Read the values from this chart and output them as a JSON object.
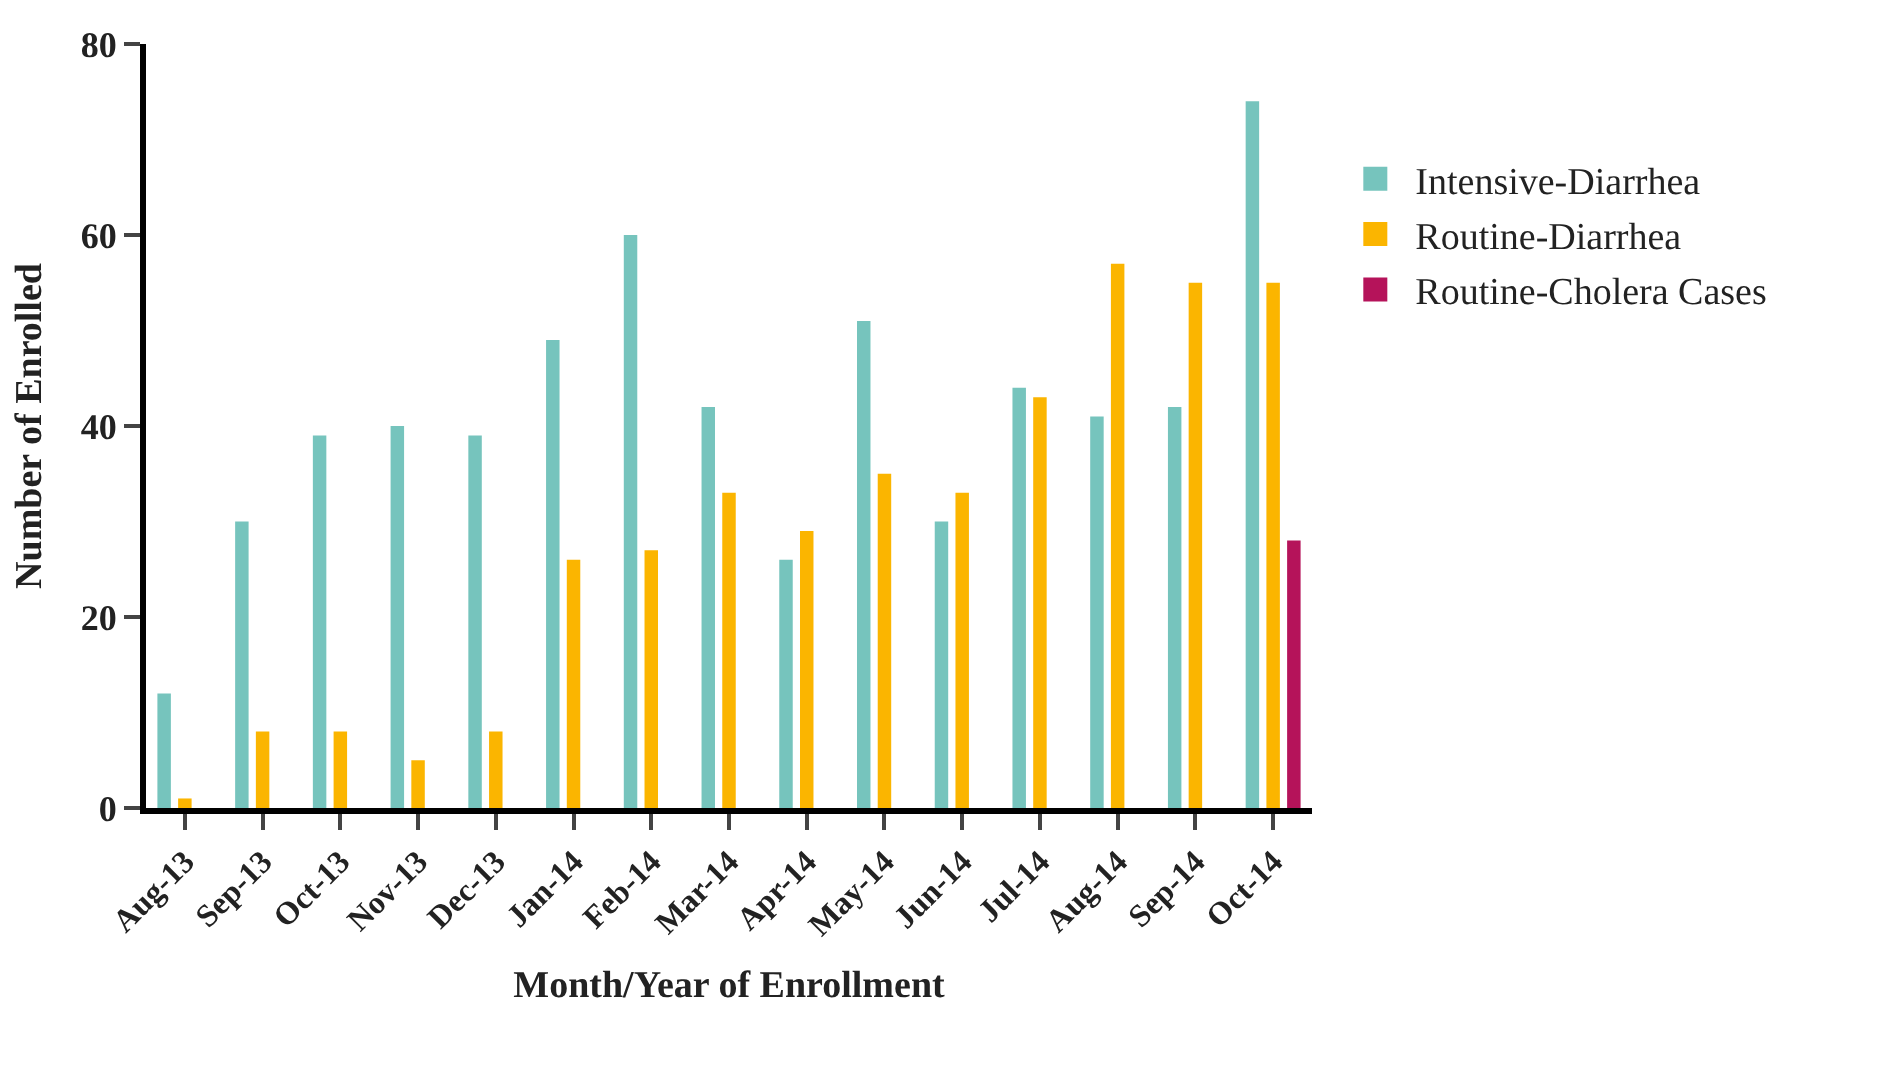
{
  "chart_data": {
    "type": "bar",
    "xlabel": "Month/Year of Enrollment",
    "ylabel": "Number of Enrolled",
    "categories": [
      "Aug-13",
      "Sep-13",
      "Oct-13",
      "Nov-13",
      "Dec-13",
      "Jan-14",
      "Feb-14",
      "Mar-14",
      "Apr-14",
      "May-14",
      "Jun-14",
      "Jul-14",
      "Aug-14",
      "Sep-14",
      "Oct-14"
    ],
    "series": [
      {
        "name": "Intensive-Diarrhea",
        "color": "#76c4bd",
        "values": [
          12,
          30,
          39,
          40,
          39,
          49,
          60,
          42,
          26,
          51,
          30,
          44,
          41,
          42,
          74
        ]
      },
      {
        "name": "Routine-Diarrhea",
        "color": "#fbb500",
        "values": [
          1,
          8,
          8,
          5,
          8,
          26,
          27,
          33,
          29,
          35,
          33,
          43,
          57,
          55,
          55
        ]
      },
      {
        "name": "Routine-Cholera Cases",
        "color": "#b5135a",
        "values": [
          null,
          null,
          null,
          null,
          null,
          null,
          null,
          null,
          null,
          null,
          null,
          null,
          null,
          null,
          28
        ]
      }
    ],
    "ylim": [
      0,
      80
    ],
    "yticks": [
      0,
      20,
      40,
      60,
      80
    ],
    "legend": "right"
  }
}
